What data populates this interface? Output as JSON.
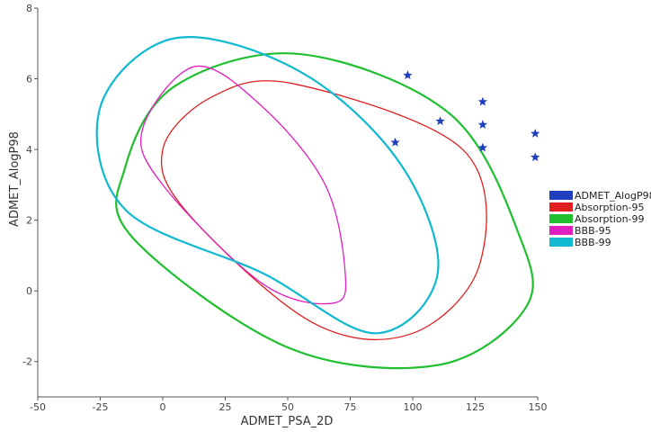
{
  "chart_data": {
    "type": "scatter",
    "title": "",
    "xlabel": "ADMET_PSA_2D",
    "ylabel": "ADMET_AlogP98",
    "xlim": [
      -50,
      150
    ],
    "ylim": [
      -3,
      8
    ],
    "xticks": [
      -50,
      -25,
      0,
      25,
      50,
      75,
      100,
      125,
      150
    ],
    "yticks": [
      -2,
      0,
      2,
      4,
      6,
      8
    ],
    "grid": false,
    "legend_position": "right",
    "points": {
      "name": "ADMET_AlogP98",
      "color": "#1f3fbf",
      "marker": "star",
      "data": [
        {
          "x": 98,
          "y": 6.1
        },
        {
          "x": 111,
          "y": 4.8
        },
        {
          "x": 93,
          "y": 4.2
        },
        {
          "x": 128,
          "y": 5.35
        },
        {
          "x": 128,
          "y": 4.7
        },
        {
          "x": 128,
          "y": 4.05
        },
        {
          "x": 149,
          "y": 4.45
        },
        {
          "x": 149,
          "y": 3.78
        }
      ]
    },
    "ellipses": [
      {
        "name": "Absorption-95",
        "color": "#e02020",
        "points": [
          [
            53,
            5.85
          ],
          [
            120,
            4.0
          ],
          [
            127,
            0.8
          ],
          [
            100,
            -1.2
          ],
          [
            60,
            -0.9
          ],
          [
            10,
            2.2
          ],
          [
            0,
            4.0
          ],
          [
            20,
            5.5
          ]
        ]
      },
      {
        "name": "Absorption-99",
        "color": "#1fbf2f",
        "points": [
          [
            55,
            6.7
          ],
          [
            115,
            5.0
          ],
          [
            143,
            1.5
          ],
          [
            145,
            -0.5
          ],
          [
            110,
            -2.1
          ],
          [
            50,
            -1.6
          ],
          [
            -12,
            1.5
          ],
          [
            -15,
            3.5
          ],
          [
            5,
            5.8
          ]
        ]
      },
      {
        "name": "BBB-95",
        "color": "#e020c0",
        "points": [
          [
            13,
            6.35
          ],
          [
            40,
            5.2
          ],
          [
            65,
            3.0
          ],
          [
            73,
            0.5
          ],
          [
            68,
            -0.35
          ],
          [
            40,
            0.2
          ],
          [
            0,
            3.0
          ],
          [
            -8,
            4.6
          ]
        ]
      },
      {
        "name": "BBB-99",
        "color": "#10b8d0",
        "points": [
          [
            5,
            7.15
          ],
          [
            55,
            6.2
          ],
          [
            95,
            3.6
          ],
          [
            110,
            0.5
          ],
          [
            85,
            -1.2
          ],
          [
            40,
            0.5
          ],
          [
            -15,
            2.3
          ],
          [
            -25,
            5.2
          ]
        ]
      }
    ],
    "legend": [
      {
        "label": "ADMET_AlogP98",
        "color": "#1f3fbf"
      },
      {
        "label": "Absorption-95",
        "color": "#e02020"
      },
      {
        "label": "Absorption-99",
        "color": "#1fbf2f"
      },
      {
        "label": "BBB-95",
        "color": "#e020c0"
      },
      {
        "label": "BBB-99",
        "color": "#10b8d0"
      }
    ]
  }
}
